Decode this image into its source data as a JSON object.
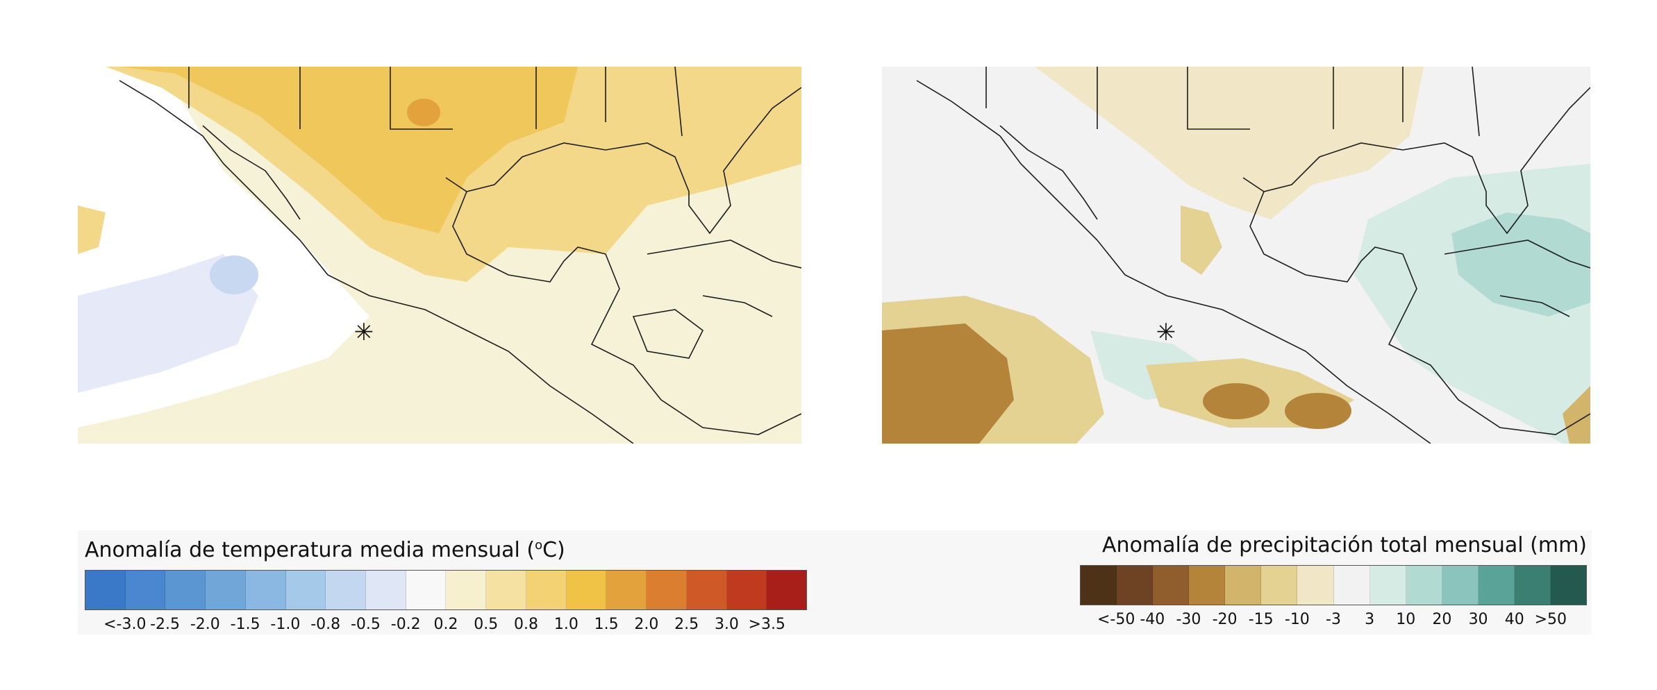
{
  "maps": {
    "temperature": {
      "region_name": "temperature-anomaly-map",
      "marker_symbol": "✳"
    },
    "precipitation": {
      "region_name": "precipitation-anomaly-map",
      "marker_symbol": "✳"
    }
  },
  "legends": {
    "temperature": {
      "title_prefix": "Anomalía de temperatura media mensual (",
      "title_unit_sup": "o",
      "title_suffix": "C)",
      "colors": [
        "#3a78c8",
        "#4a87d0",
        "#5b95d2",
        "#70a6d8",
        "#8ab8e2",
        "#a5c9e8",
        "#c3d8f0",
        "#dfe7f6",
        "#f8f8f8",
        "#f7f0cf",
        "#f5e2a2",
        "#f3d273",
        "#f0c347",
        "#e4a23c",
        "#db7e30",
        "#cf5a28",
        "#c03a1f",
        "#a81f1a"
      ],
      "ticks": [
        "<-3.0",
        "-2.5",
        "-2.0",
        "-1.5",
        "-1.0",
        "-0.8",
        "-0.5",
        "-0.2",
        "0.2",
        "0.5",
        "0.8",
        "1.0",
        "1.5",
        "2.0",
        "2.5",
        "3.0",
        ">3.5"
      ]
    },
    "precipitation": {
      "title": "Anomalía de precipitación total mensual (mm)",
      "colors": [
        "#4e3217",
        "#6e4324",
        "#8f5e2c",
        "#b3843a",
        "#d3b46b",
        "#e4d293",
        "#f1e7c6",
        "#f2f2f2",
        "#d6ebe4",
        "#b1dad2",
        "#8ac4bc",
        "#5aa398",
        "#3a7f72",
        "#24594f"
      ],
      "ticks": [
        "<-50",
        "-40",
        "-30",
        "-20",
        "-15",
        "-10",
        "-3",
        "3",
        "10",
        "20",
        "30",
        "40",
        ">50"
      ]
    }
  }
}
